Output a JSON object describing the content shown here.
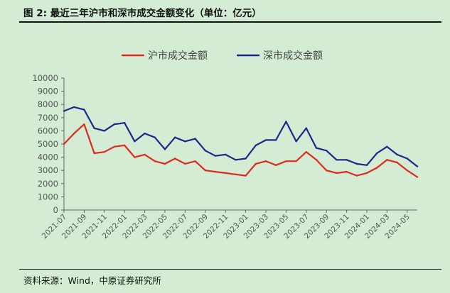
{
  "figure": {
    "title": "图 2:  最近三年沪市和深市成交金额变化（单位：亿元）",
    "source": "资料来源：Wind，中原证券研究所"
  },
  "chart_data": {
    "type": "line",
    "title": "",
    "xlabel": "",
    "ylabel": "",
    "ylim": [
      0,
      10000
    ],
    "yticks": [
      "0",
      "1000",
      "2000",
      "3000",
      "4000",
      "5000",
      "6000",
      "7000",
      "8000",
      "9000",
      "10000"
    ],
    "xticks": [
      "2021-07",
      "2021-09",
      "2021-11",
      "2022-01",
      "2022-03",
      "2022-05",
      "2022-07",
      "2022-09",
      "2022-11",
      "2023-01",
      "2023-03",
      "2023-05",
      "2023-07",
      "2023-09",
      "2023-11",
      "2024-01",
      "2024-03",
      "2024-05"
    ],
    "x": [
      "2021-07",
      "2021-08",
      "2021-09",
      "2021-10",
      "2021-11",
      "2021-12",
      "2022-01",
      "2022-02",
      "2022-03",
      "2022-04",
      "2022-05",
      "2022-06",
      "2022-07",
      "2022-08",
      "2022-09",
      "2022-10",
      "2022-11",
      "2022-12",
      "2023-01",
      "2023-02",
      "2023-03",
      "2023-04",
      "2023-05",
      "2023-06",
      "2023-07",
      "2023-08",
      "2023-09",
      "2023-10",
      "2023-11",
      "2023-12",
      "2024-01",
      "2024-02",
      "2024-03",
      "2024-04",
      "2024-05",
      "2024-06"
    ],
    "legend_position": "top",
    "grid": false,
    "series": [
      {
        "name": "沪市成交金额",
        "color": "#e02a20",
        "values": [
          5000,
          5800,
          6500,
          4300,
          4400,
          4800,
          4900,
          4000,
          4200,
          3700,
          3500,
          3900,
          3500,
          3700,
          3000,
          2900,
          2800,
          2700,
          2600,
          3500,
          3700,
          3400,
          3700,
          3700,
          4400,
          3800,
          3000,
          2800,
          2900,
          2600,
          2800,
          3200,
          3800,
          3600,
          3000,
          2500
        ]
      },
      {
        "name": "深市成交金额",
        "color": "#1b2a8a",
        "values": [
          7500,
          7800,
          7600,
          6200,
          6000,
          6500,
          6600,
          5200,
          5800,
          5500,
          4600,
          5500,
          5200,
          5400,
          4500,
          4100,
          4200,
          3800,
          3900,
          4900,
          5300,
          5300,
          6700,
          5200,
          6200,
          4700,
          4500,
          3800,
          3800,
          3500,
          3400,
          4300,
          4800,
          4200,
          3900,
          3300
        ]
      }
    ]
  }
}
